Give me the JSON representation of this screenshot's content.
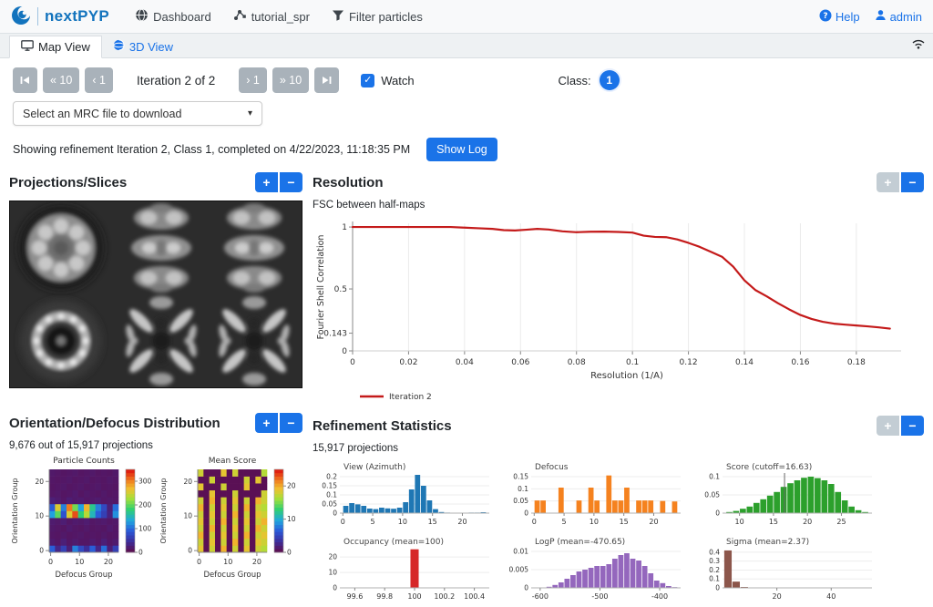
{
  "navbar": {
    "brand": "nextPYP",
    "items": [
      {
        "label": "Dashboard",
        "icon": "dashboard-icon"
      },
      {
        "label": "tutorial_spr",
        "icon": "project-graph-icon"
      },
      {
        "label": "Filter particles",
        "icon": "filter-icon"
      }
    ],
    "help_label": "Help",
    "admin_label": "admin"
  },
  "tabs": [
    {
      "label": "Map View",
      "active": true,
      "icon": "monitor-icon"
    },
    {
      "label": "3D View",
      "active": false,
      "icon": "sphere-icon"
    }
  ],
  "controls": {
    "back10": "« 10",
    "back1": "‹ 1",
    "iteration_label": "Iteration 2 of 2",
    "fwd1": "› 1",
    "fwd10": "» 10",
    "watch_label": "Watch",
    "watch_checked": true,
    "check_glyph": "✓",
    "class_label": "Class:",
    "class_value": "1"
  },
  "mrc_select": {
    "placeholder": "Select an MRC file to download",
    "caret": "▾"
  },
  "status": {
    "text": "Showing refinement Iteration 2, Class 1, completed on 4/22/2023, 11:18:35 PM",
    "show_log_label": "Show Log"
  },
  "panel_controls": {
    "zoom_in": "+",
    "zoom_out": "−"
  },
  "panels": {
    "projections": {
      "title": "Projections/Slices"
    },
    "resolution": {
      "title": "Resolution",
      "subtitle": "FSC between half-maps"
    },
    "orientation": {
      "title": "Orientation/Defocus Distribution",
      "subtitle": "9,676 out of 15,917 projections"
    },
    "statistics": {
      "title": "Refinement Statistics",
      "subtitle": "15,917 projections"
    }
  },
  "colors": {
    "accent": "#1a73e8",
    "disabled_button": "#c3cdd4",
    "gray_button": "#a9b2ba",
    "fsc_line": "#c41a1a",
    "heat_colormap": [
      [
        0.0,
        "#5a1055"
      ],
      [
        0.12,
        "#3c2f9c"
      ],
      [
        0.25,
        "#2b59d8"
      ],
      [
        0.38,
        "#20a7df"
      ],
      [
        0.52,
        "#2fd072"
      ],
      [
        0.66,
        "#a8e038"
      ],
      [
        0.78,
        "#f0c030"
      ],
      [
        0.88,
        "#f08020"
      ],
      [
        1.0,
        "#e02010"
      ]
    ]
  },
  "chart_data": [
    {
      "id": "fsc",
      "type": "line",
      "title": "FSC between half-maps",
      "xlabel": "Resolution (1/A)",
      "ylabel": "Fourier Shell Correlation",
      "xlim": [
        0,
        0.196
      ],
      "ylim": [
        0,
        1.03
      ],
      "xticks": [
        0,
        0.02,
        0.04,
        0.06,
        0.08,
        0.1,
        0.12,
        0.14,
        0.16,
        0.18
      ],
      "yticks": [
        0,
        0.143,
        0.5,
        1
      ],
      "legend_position": "bottom-left",
      "series": [
        {
          "name": "Iteration 2",
          "color": "#c41a1a",
          "x": [
            0,
            0.005,
            0.01,
            0.015,
            0.02,
            0.025,
            0.03,
            0.035,
            0.04,
            0.045,
            0.05,
            0.054,
            0.058,
            0.062,
            0.066,
            0.07,
            0.075,
            0.08,
            0.085,
            0.09,
            0.095,
            0.1,
            0.104,
            0.108,
            0.112,
            0.116,
            0.12,
            0.124,
            0.128,
            0.132,
            0.136,
            0.14,
            0.144,
            0.148,
            0.152,
            0.156,
            0.16,
            0.164,
            0.168,
            0.172,
            0.176,
            0.18,
            0.184,
            0.188,
            0.192
          ],
          "y": [
            1,
            1,
            1,
            1,
            1,
            1,
            1,
            1,
            0.995,
            0.99,
            0.985,
            0.975,
            0.972,
            0.978,
            0.985,
            0.98,
            0.965,
            0.958,
            0.962,
            0.963,
            0.96,
            0.955,
            0.93,
            0.92,
            0.918,
            0.9,
            0.872,
            0.84,
            0.8,
            0.76,
            0.68,
            0.57,
            0.49,
            0.44,
            0.385,
            0.335,
            0.29,
            0.258,
            0.235,
            0.22,
            0.212,
            0.205,
            0.198,
            0.19,
            0.18
          ]
        }
      ]
    },
    {
      "id": "view_azimuth",
      "type": "bar",
      "title": "View (Azimuth)",
      "color": "#1f77b4",
      "x_start": 0,
      "bin": 1,
      "xlim": [
        -0.5,
        24.5
      ],
      "ylim": [
        0,
        0.22
      ],
      "xticks": [
        0,
        5,
        10,
        15,
        20
      ],
      "yticks": [
        0,
        0.05,
        0.1,
        0.15,
        0.2
      ],
      "values": [
        0.04,
        0.055,
        0.048,
        0.04,
        0.025,
        0.022,
        0.03,
        0.026,
        0.024,
        0.03,
        0.06,
        0.13,
        0.21,
        0.15,
        0.07,
        0.022,
        0.006,
        0.003,
        0.002,
        0.002,
        0.002,
        0.003,
        0.003,
        0.005
      ]
    },
    {
      "id": "defocus",
      "type": "bar",
      "title": "Defocus",
      "color": "#f5821f",
      "x_start": 0,
      "bin": 1,
      "xlim": [
        -0.5,
        24.5
      ],
      "ylim": [
        0,
        0.165
      ],
      "xticks": [
        0,
        5,
        10,
        15,
        20
      ],
      "yticks": [
        0,
        0.05,
        0.1,
        0.15
      ],
      "values": [
        0.052,
        0.052,
        0,
        0,
        0.105,
        0,
        0,
        0.052,
        0,
        0.105,
        0.052,
        0,
        0.155,
        0.052,
        0.052,
        0.105,
        0,
        0.052,
        0.052,
        0.052,
        0,
        0.05,
        0,
        0.048
      ]
    },
    {
      "id": "score",
      "type": "bar",
      "title": "Score (cutoff=16.63)",
      "color": "#2ca02c",
      "cutoff": 16.63,
      "x_start": 8,
      "bin": 1,
      "xlim": [
        7.5,
        29.5
      ],
      "ylim": [
        0,
        0.11
      ],
      "xticks": [
        10,
        15,
        20,
        25
      ],
      "yticks": [
        0,
        0.05,
        0.1
      ],
      "values": [
        0.003,
        0.006,
        0.012,
        0.018,
        0.028,
        0.038,
        0.048,
        0.058,
        0.072,
        0.082,
        0.09,
        0.097,
        0.1,
        0.096,
        0.09,
        0.08,
        0.058,
        0.035,
        0.018,
        0.008,
        0.003
      ]
    },
    {
      "id": "occupancy",
      "type": "bar",
      "title": "Occupancy (mean=100)",
      "color": "#d62728",
      "x_start": 99.97,
      "bin": 0.06,
      "xlim": [
        99.5,
        100.5
      ],
      "ylim": [
        0,
        26
      ],
      "xticks": [
        99.6,
        99.8,
        100,
        100.2,
        100.4
      ],
      "yticks": [
        0,
        10,
        20
      ],
      "values": [
        25
      ]
    },
    {
      "id": "logp",
      "type": "bar",
      "title": "LogP (mean=-470.65)",
      "color": "#9467bd",
      "x_start": -590,
      "bin": 10,
      "xlim": [
        -615,
        -365
      ],
      "ylim": [
        0,
        0.011
      ],
      "xticks": [
        -600,
        -500,
        -400
      ],
      "yticks": [
        0,
        0.005,
        0.01
      ],
      "values": [
        0.0003,
        0.0008,
        0.0015,
        0.0025,
        0.0035,
        0.0045,
        0.005,
        0.0055,
        0.006,
        0.006,
        0.0065,
        0.008,
        0.009,
        0.0095,
        0.008,
        0.0075,
        0.006,
        0.004,
        0.002,
        0.0013,
        0.0005,
        0.0002
      ]
    },
    {
      "id": "sigma",
      "type": "bar",
      "title": "Sigma (mean=2.37)",
      "color": "#8c564b",
      "x_start": 0.5,
      "bin": 3,
      "xlim": [
        0,
        55
      ],
      "ylim": [
        0,
        0.45
      ],
      "xticks": [
        20,
        40
      ],
      "yticks": [
        0,
        0.1,
        0.2,
        0.3,
        0.4
      ],
      "values": [
        0.42,
        0.07,
        0.01,
        0.004,
        0.002,
        0.001,
        0.001,
        0.001,
        0.0005,
        0.0005,
        0.0005,
        0.0005,
        0,
        0,
        0,
        0,
        0.002
      ]
    },
    {
      "id": "particle_counts",
      "type": "heatmap",
      "title": "Particle Counts",
      "xlabel": "Defocus Group",
      "ylabel": "Orientation Group",
      "n": 24,
      "xticks": [
        0,
        10,
        20
      ],
      "yticks": [
        0,
        10,
        20
      ],
      "cmax": 350,
      "colorbar_ticks": [
        0,
        100,
        200,
        300
      ],
      "rows_order": "bottom-to-top",
      "grid": [
        [
          90,
          30,
          60,
          20,
          110,
          70,
          40,
          90,
          30,
          100,
          20,
          60
        ],
        [
          15,
          10,
          20,
          10,
          15,
          10,
          10,
          15,
          10,
          20,
          10,
          15
        ],
        [
          10,
          8,
          12,
          8,
          10,
          12,
          8,
          10,
          8,
          12,
          8,
          10
        ],
        [
          12,
          10,
          8,
          14,
          10,
          8,
          12,
          8,
          10,
          8,
          14,
          10
        ],
        [
          15,
          12,
          18,
          10,
          14,
          12,
          16,
          10,
          12,
          14,
          10,
          12
        ],
        [
          130,
          200,
          80,
          260,
          330,
          180,
          240,
          150,
          90,
          60,
          25,
          120
        ],
        [
          90,
          260,
          110,
          310,
          210,
          130,
          280,
          170,
          110,
          70,
          20,
          100
        ],
        [
          20,
          15,
          10,
          18,
          12,
          15,
          10,
          12,
          15,
          10,
          12,
          10
        ],
        [
          10,
          12,
          8,
          10,
          14,
          8,
          12,
          10,
          8,
          12,
          8,
          10
        ],
        [
          8,
          10,
          12,
          8,
          10,
          12,
          8,
          10,
          12,
          8,
          10,
          8
        ],
        [
          10,
          8,
          10,
          12,
          8,
          10,
          12,
          8,
          10,
          8,
          12,
          10
        ],
        [
          12,
          10,
          8,
          10,
          12,
          8,
          10,
          12,
          8,
          10,
          8,
          12
        ]
      ]
    },
    {
      "id": "mean_score",
      "type": "heatmap",
      "title": "Mean Score",
      "xlabel": "Defocus Group",
      "ylabel": "Orientation Group",
      "n": 24,
      "xticks": [
        0,
        10,
        20
      ],
      "yticks": [
        0,
        10,
        20
      ],
      "cmax": 25,
      "colorbar_ticks": [
        0,
        10,
        20
      ],
      "rows_order": "bottom-to-top",
      "grid": [
        [
          19,
          0,
          18,
          0,
          20,
          0,
          18,
          0,
          19,
          0,
          18,
          17
        ],
        [
          18,
          0,
          19,
          0,
          18,
          0,
          20,
          0,
          18,
          0,
          19,
          18
        ],
        [
          20,
          0,
          18,
          0,
          19,
          0,
          18,
          0,
          20,
          0,
          18,
          19
        ],
        [
          18,
          0,
          20,
          0,
          18,
          0,
          19,
          0,
          18,
          0,
          20,
          18
        ],
        [
          19,
          0,
          18,
          0,
          20,
          0,
          18,
          0,
          19,
          0,
          18,
          20
        ],
        [
          18,
          0,
          19,
          0,
          18,
          0,
          20,
          0,
          18,
          0,
          19,
          18
        ],
        [
          20,
          0,
          18,
          0,
          19,
          0,
          18,
          0,
          20,
          0,
          18,
          17
        ],
        [
          18,
          0,
          20,
          0,
          18,
          0,
          19,
          0,
          18,
          0,
          20,
          18
        ],
        [
          0,
          0,
          19,
          0,
          0,
          0,
          18,
          0,
          0,
          0,
          0,
          18
        ],
        [
          19,
          0,
          0,
          0,
          18,
          0,
          0,
          0,
          19,
          0,
          0,
          0
        ],
        [
          0,
          0,
          18,
          0,
          0,
          0,
          0,
          0,
          18,
          0,
          19,
          0
        ],
        [
          18,
          0,
          0,
          0,
          19,
          0,
          18,
          0,
          0,
          0,
          0,
          17
        ]
      ]
    }
  ]
}
